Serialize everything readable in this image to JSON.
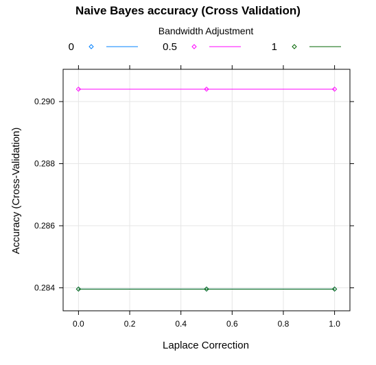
{
  "chart_data": {
    "type": "line",
    "title": "Naive Bayes accuracy (Cross Validation)",
    "legend_title": "Bandwidth Adjustment",
    "legend_placement": "top",
    "xlabel": "Laplace Correction",
    "ylabel": "Accuracy (Cross-Validation)",
    "x": [
      0.0,
      0.5,
      1.0
    ],
    "xlim": [
      -0.06,
      1.06
    ],
    "ylim": [
      0.28326,
      0.29104
    ],
    "xticks": [
      "0.0",
      "0.2",
      "0.4",
      "0.6",
      "0.8",
      "1.0"
    ],
    "yticks": [
      "0.284",
      "0.286",
      "0.288",
      "0.290"
    ],
    "grid": true,
    "series": [
      {
        "name": "0",
        "color": "#0080ff",
        "values": [
          0.28396,
          0.28396,
          0.28396
        ]
      },
      {
        "name": "0.5",
        "color": "#ff00ff",
        "values": [
          0.2904,
          0.2904,
          0.2904
        ]
      },
      {
        "name": "1",
        "color": "#006400",
        "values": [
          0.28396,
          0.28396,
          0.28396
        ]
      }
    ]
  }
}
